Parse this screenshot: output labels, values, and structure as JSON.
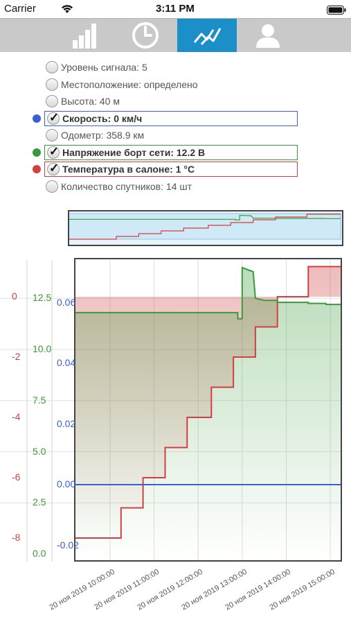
{
  "status": {
    "carrier": "Carrier",
    "time": "3:11 PM"
  },
  "tabs": [
    {
      "icon": "signal-bars-icon",
      "active": false
    },
    {
      "icon": "clock-icon",
      "active": false
    },
    {
      "icon": "chart-line-icon",
      "active": true
    },
    {
      "icon": "user-icon",
      "active": false
    }
  ],
  "options": [
    {
      "label": "Уровень сигнала: 5",
      "checked": false
    },
    {
      "label": "Местоположение: определено",
      "checked": false
    },
    {
      "label": "Высота: 40 м",
      "checked": false
    },
    {
      "label": "Скорость: 0 км/ч",
      "checked": true,
      "color": "#3a5fd0"
    },
    {
      "label": "Одометр: 358.9 км",
      "checked": false
    },
    {
      "label": "Напряжение борт сети: 12.2 В",
      "checked": true,
      "color": "#3a9a3a"
    },
    {
      "label": "Температура в салоне: 1 °C",
      "checked": true,
      "color": "#d04040"
    },
    {
      "label": "Количество спутников: 14 шт",
      "checked": false
    }
  ],
  "chart_data": {
    "type": "line",
    "x_ticks": [
      "20 ноя 2019  10:00:00",
      "20 ноя 2019  11:00:00",
      "20 ноя 2019  12:00:00",
      "20 ноя 2019  13:00:00",
      "20 ноя 2019  14:00:00",
      "20 ноя 2019  15:00:00"
    ],
    "axes": {
      "temperature": {
        "ticks": [
          "0",
          "-2",
          "-4",
          "-6",
          "-8"
        ],
        "range": [
          -8.5,
          0.5
        ],
        "color": "#d04040"
      },
      "voltage": {
        "ticks": [
          "12.5",
          "10.0",
          "7.5",
          "5.0",
          "2.5",
          "0.0"
        ],
        "range": [
          0,
          14.5
        ],
        "color": "#3a9a3a"
      },
      "speed": {
        "ticks": [
          "0.06",
          "0.04",
          "0.02",
          "0.00",
          "-0.02"
        ],
        "range": [
          -0.025,
          0.0625
        ],
        "color": "#3a5fd0"
      }
    },
    "series": [
      {
        "axis": "temperature",
        "color": "#d04040",
        "points": [
          [
            9.2,
            -8
          ],
          [
            10.25,
            -8
          ],
          [
            10.25,
            -7
          ],
          [
            10.75,
            -7
          ],
          [
            10.75,
            -6
          ],
          [
            11.25,
            -6
          ],
          [
            11.25,
            -5
          ],
          [
            11.75,
            -5
          ],
          [
            11.75,
            -4
          ],
          [
            12.3,
            -4
          ],
          [
            12.3,
            -3
          ],
          [
            12.8,
            -3
          ],
          [
            12.8,
            -2
          ],
          [
            13.3,
            -2
          ],
          [
            13.3,
            -1
          ],
          [
            13.8,
            -1
          ],
          [
            13.8,
            0
          ],
          [
            14.5,
            0
          ],
          [
            14.5,
            1
          ],
          [
            15.25,
            1
          ]
        ]
      },
      {
        "axis": "voltage",
        "color": "#3a9a3a",
        "points": [
          [
            9.2,
            11.8
          ],
          [
            12.9,
            11.8
          ],
          [
            12.9,
            11.5
          ],
          [
            13.0,
            11.5
          ],
          [
            13.0,
            14.0
          ],
          [
            13.25,
            13.8
          ],
          [
            13.3,
            12.5
          ],
          [
            13.5,
            12.4
          ],
          [
            13.8,
            12.4
          ],
          [
            13.8,
            12.3
          ],
          [
            14.5,
            12.3
          ],
          [
            14.5,
            12.25
          ],
          [
            14.9,
            12.25
          ],
          [
            14.9,
            12.2
          ],
          [
            15.25,
            12.2
          ]
        ]
      },
      {
        "axis": "speed",
        "color": "#3a5fd0",
        "points": [
          [
            9.2,
            0
          ],
          [
            15.25,
            0
          ]
        ]
      }
    ]
  }
}
